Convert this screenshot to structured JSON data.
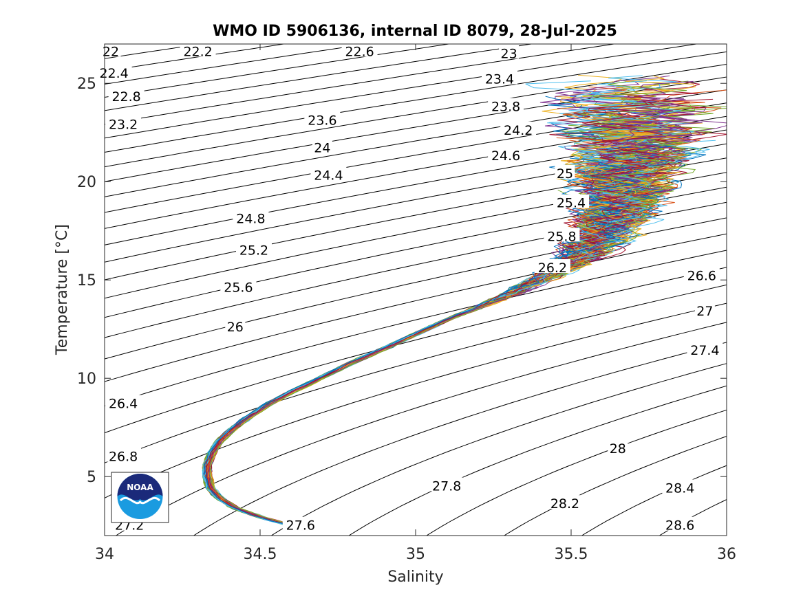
{
  "chart_data": {
    "type": "line",
    "title": "WMO ID 5906136, internal ID 8079, 28-Jul-2025",
    "xlabel": "Salinity",
    "ylabel": "Temperature [°C]",
    "xlim": [
      34,
      36
    ],
    "ylim": [
      2,
      27
    ],
    "x_ticks": [
      "34",
      "34.5",
      "35",
      "35.5",
      "36"
    ],
    "y_ticks": [
      "5",
      "10",
      "15",
      "20",
      "25"
    ],
    "grid": false,
    "density_contours": [
      21.8,
      22.0,
      22.2,
      22.4,
      22.6,
      22.8,
      23.0,
      23.2,
      23.4,
      23.6,
      23.8,
      24.0,
      24.2,
      24.4,
      24.6,
      24.8,
      25.0,
      25.2,
      25.4,
      25.6,
      25.8,
      26.0,
      26.2,
      26.4,
      26.6,
      26.8,
      27.0,
      27.2,
      27.4,
      27.6,
      27.8,
      28.0,
      28.2,
      28.4,
      28.6,
      28.8
    ],
    "contour_labels": [
      {
        "text": "22",
        "s": 34.02,
        "t": 26.6
      },
      {
        "text": "22.2",
        "s": 34.3,
        "t": 26.6
      },
      {
        "text": "22.6",
        "s": 34.82,
        "t": 26.6
      },
      {
        "text": "23",
        "s": 35.3,
        "t": 26.5
      },
      {
        "text": "22.4",
        "s": 34.03,
        "t": 25.5
      },
      {
        "text": "23.4",
        "s": 35.27,
        "t": 25.2
      },
      {
        "text": "22.8",
        "s": 34.07,
        "t": 24.3
      },
      {
        "text": "23.8",
        "s": 35.29,
        "t": 23.8
      },
      {
        "text": "23.2",
        "s": 34.06,
        "t": 22.9
      },
      {
        "text": "23.6",
        "s": 34.7,
        "t": 23.1
      },
      {
        "text": "24.2",
        "s": 35.33,
        "t": 22.6
      },
      {
        "text": "24",
        "s": 34.7,
        "t": 21.7
      },
      {
        "text": "24.6",
        "s": 35.29,
        "t": 21.3
      },
      {
        "text": "24.4",
        "s": 34.72,
        "t": 20.3
      },
      {
        "text": "25",
        "s": 35.48,
        "t": 20.4
      },
      {
        "text": "25.4",
        "s": 35.5,
        "t": 18.9
      },
      {
        "text": "24.8",
        "s": 34.47,
        "t": 18.1
      },
      {
        "text": "25.8",
        "s": 35.47,
        "t": 17.2
      },
      {
        "text": "25.2",
        "s": 34.48,
        "t": 16.5
      },
      {
        "text": "26.2",
        "s": 35.44,
        "t": 15.6
      },
      {
        "text": "26.6",
        "s": 35.92,
        "t": 15.2
      },
      {
        "text": "25.6",
        "s": 34.43,
        "t": 14.6
      },
      {
        "text": "27",
        "s": 35.93,
        "t": 13.4
      },
      {
        "text": "26",
        "s": 34.42,
        "t": 12.6
      },
      {
        "text": "27.4",
        "s": 35.93,
        "t": 11.4
      },
      {
        "text": "26.4",
        "s": 34.06,
        "t": 8.7
      },
      {
        "text": "28",
        "s": 35.65,
        "t": 6.4
      },
      {
        "text": "26.8",
        "s": 34.06,
        "t": 6.0
      },
      {
        "text": "27.8",
        "s": 35.1,
        "t": 4.5
      },
      {
        "text": "28.4",
        "s": 35.85,
        "t": 4.4
      },
      {
        "text": "28.2",
        "s": 35.48,
        "t": 3.6
      },
      {
        "text": "27.6",
        "s": 34.63,
        "t": 2.5
      },
      {
        "text": "28.6",
        "s": 35.85,
        "t": 2.5
      },
      {
        "text": "27.2",
        "s": 34.08,
        "t": 2.5
      }
    ],
    "series_shape": [
      {
        "s": 34.64,
        "t": 2.3
      },
      {
        "s": 34.58,
        "t": 2.6
      },
      {
        "s": 34.5,
        "t": 2.95
      },
      {
        "s": 34.42,
        "t": 3.4
      },
      {
        "s": 34.37,
        "t": 3.9
      },
      {
        "s": 34.34,
        "t": 4.4
      },
      {
        "s": 34.33,
        "t": 5.0
      },
      {
        "s": 34.33,
        "t": 5.6
      },
      {
        "s": 34.345,
        "t": 6.2
      },
      {
        "s": 34.37,
        "t": 6.8
      },
      {
        "s": 34.41,
        "t": 7.4
      },
      {
        "s": 34.46,
        "t": 8.0
      },
      {
        "s": 34.53,
        "t": 8.7
      },
      {
        "s": 34.6,
        "t": 9.3
      },
      {
        "s": 34.68,
        "t": 9.9
      },
      {
        "s": 34.77,
        "t": 10.6
      },
      {
        "s": 34.87,
        "t": 11.3
      },
      {
        "s": 34.98,
        "t": 12.1
      },
      {
        "s": 35.09,
        "t": 12.9
      },
      {
        "s": 35.2,
        "t": 13.6
      },
      {
        "s": 35.32,
        "t": 14.4
      },
      {
        "s": 35.44,
        "t": 15.3
      },
      {
        "s": 35.54,
        "t": 16.3
      },
      {
        "s": 35.6,
        "t": 17.3
      },
      {
        "s": 35.64,
        "t": 18.4
      },
      {
        "s": 35.67,
        "t": 19.6
      },
      {
        "s": 35.69,
        "t": 20.8
      },
      {
        "s": 35.7,
        "t": 22.0
      }
    ],
    "profile_count": 120,
    "logo": "noaa-logo"
  }
}
